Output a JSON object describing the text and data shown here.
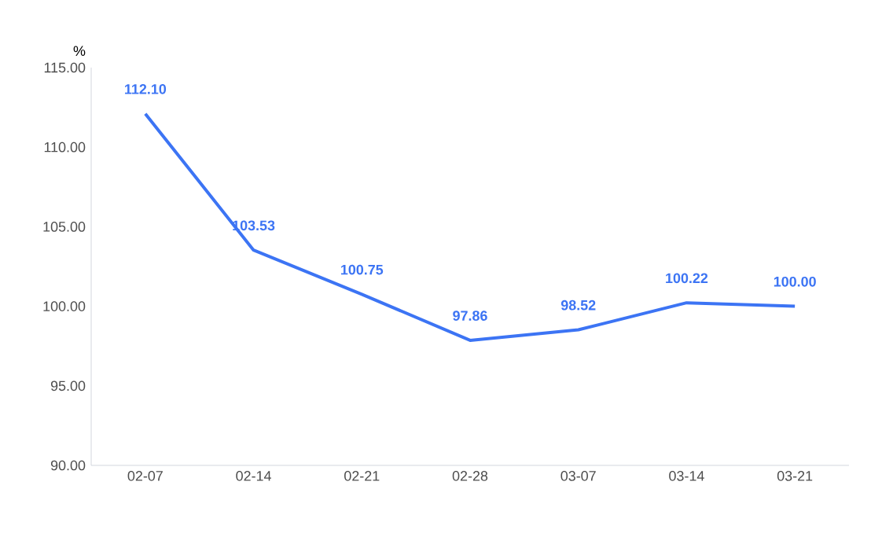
{
  "chart_data": {
    "type": "line",
    "ylabel": "%",
    "categories": [
      "02-07",
      "02-14",
      "02-21",
      "02-28",
      "03-07",
      "03-14",
      "03-21"
    ],
    "values": [
      112.1,
      103.53,
      100.75,
      97.86,
      98.52,
      100.22,
      100.0
    ],
    "value_labels": [
      "112.10",
      "103.53",
      "100.75",
      "97.86",
      "98.52",
      "100.22",
      "100.00"
    ],
    "color": "#3c74f4",
    "ylim": [
      90,
      115
    ],
    "yticks": [
      {
        "value": 90,
        "label": "90.00"
      },
      {
        "value": 95,
        "label": "95.00"
      },
      {
        "value": 100,
        "label": "100.00"
      },
      {
        "value": 105,
        "label": "105.00"
      },
      {
        "value": 110,
        "label": "110.00"
      },
      {
        "value": 115,
        "label": "115.00"
      }
    ],
    "grid": false,
    "marker": "none",
    "line_style": "solid"
  }
}
